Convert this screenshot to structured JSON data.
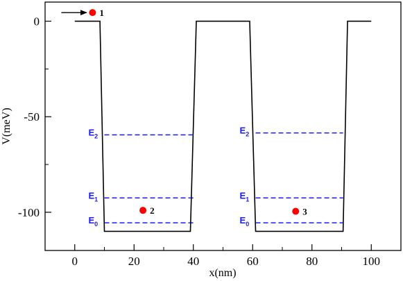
{
  "chart_data": {
    "type": "line",
    "xlabel": "x(nm)",
    "ylabel": "V(meV)",
    "xlim": [
      -10,
      110
    ],
    "ylim": [
      -120,
      10
    ],
    "x_ticks": [
      0,
      20,
      40,
      60,
      80,
      100
    ],
    "y_ticks": [
      0,
      -50,
      -100
    ],
    "grid": false,
    "potential": {
      "name": "",
      "color": "#000000",
      "x": [
        0,
        8.5,
        10,
        39,
        41,
        59,
        61,
        90.5,
        92,
        100
      ],
      "y": [
        0,
        0,
        -110,
        -110,
        0,
        0,
        -110,
        -110,
        0,
        0
      ]
    },
    "energy_levels": {
      "color": "#1a1aff",
      "wells": [
        {
          "x_range": [
            10,
            40
          ],
          "levels": [
            {
              "label": "E",
              "sub": "0",
              "energy": -105.5
            },
            {
              "label": "E",
              "sub": "1",
              "energy": -92.5
            },
            {
              "label": "E",
              "sub": "2",
              "energy": -59.5
            }
          ]
        },
        {
          "x_range": [
            61,
            90.5
          ],
          "levels": [
            {
              "label": "E",
              "sub": "0",
              "energy": -105.5
            },
            {
              "label": "E",
              "sub": "1",
              "energy": -92.5
            },
            {
              "label": "E",
              "sub": "2",
              "energy": -58.5
            }
          ]
        }
      ]
    },
    "electrons": [
      {
        "label": "1",
        "x": 6,
        "y": 4.5
      },
      {
        "label": "2",
        "x": 23,
        "y": -99
      },
      {
        "label": "3",
        "x": 74.5,
        "y": -99.5
      }
    ],
    "electron_color": "#ff0000",
    "arrow": {
      "x_from": -4.5,
      "x_to": 4,
      "y": 4.5
    }
  }
}
